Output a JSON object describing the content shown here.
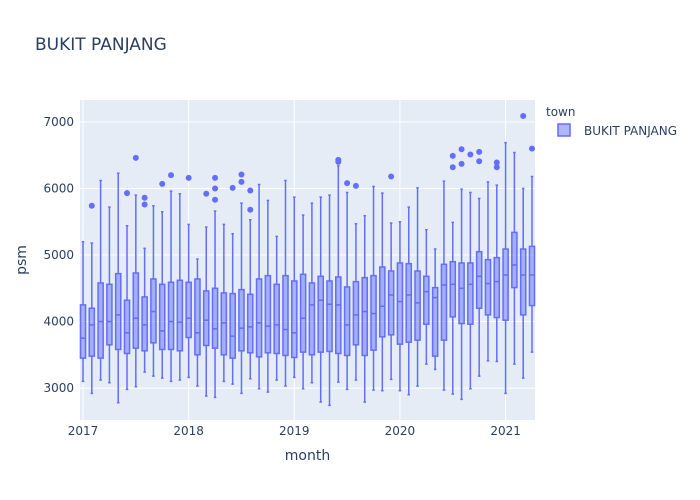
{
  "chart_data": {
    "type": "box",
    "title": "BUKIT PANJANG",
    "xlabel": "month",
    "ylabel": "psm",
    "xlim": [
      "2017-01",
      "2021-04"
    ],
    "ylim": [
      2520,
      7330
    ],
    "x_ticks": [
      {
        "value": "2017-01",
        "label": "2017"
      },
      {
        "value": "2018-01",
        "label": "2018"
      },
      {
        "value": "2019-01",
        "label": "2019"
      },
      {
        "value": "2020-01",
        "label": "2020"
      },
      {
        "value": "2021-01",
        "label": "2021"
      }
    ],
    "y_ticks": [
      3000,
      4000,
      5000,
      6000,
      7000
    ],
    "y_tick_labels": [
      "3000",
      "4000",
      "5000",
      "6000",
      "7000"
    ],
    "grid": true,
    "legend": {
      "title": "town",
      "placement": "top-right",
      "entries": [
        "BUKIT PANJANG"
      ]
    },
    "colors": {
      "line": "#636efa",
      "fill": "rgba(99,110,250,0.5)",
      "plot_bg": "#e5ecf6",
      "grid": "#ffffff",
      "text": "#2a3f5f"
    },
    "series": [
      {
        "name": "BUKIT PANJANG",
        "boxes": [
          {
            "x": "2017-01",
            "min": 3100,
            "q1": 3450,
            "median": 3750,
            "q3": 4250,
            "max": 5200,
            "outliers": []
          },
          {
            "x": "2017-02",
            "min": 2920,
            "q1": 3480,
            "median": 3950,
            "q3": 4200,
            "max": 5180,
            "outliers": [
              5740
            ]
          },
          {
            "x": "2017-03",
            "min": 3120,
            "q1": 3450,
            "median": 4000,
            "q3": 4580,
            "max": 6120,
            "outliers": []
          },
          {
            "x": "2017-04",
            "min": 3080,
            "q1": 3650,
            "median": 4000,
            "q3": 4560,
            "max": 5720,
            "outliers": []
          },
          {
            "x": "2017-05",
            "min": 2780,
            "q1": 3580,
            "median": 4100,
            "q3": 4720,
            "max": 6230,
            "outliers": []
          },
          {
            "x": "2017-06",
            "min": 2980,
            "q1": 3520,
            "median": 3830,
            "q3": 4320,
            "max": 5440,
            "outliers": [
              5930
            ]
          },
          {
            "x": "2017-07",
            "min": 3020,
            "q1": 3600,
            "median": 4050,
            "q3": 4730,
            "max": 5900,
            "outliers": [
              6460
            ]
          },
          {
            "x": "2017-08",
            "min": 3240,
            "q1": 3560,
            "median": 3950,
            "q3": 4370,
            "max": 5100,
            "outliers": [
              5760,
              5860
            ]
          },
          {
            "x": "2017-09",
            "min": 3180,
            "q1": 3680,
            "median": 4150,
            "q3": 4640,
            "max": 5740,
            "outliers": []
          },
          {
            "x": "2017-10",
            "min": 3150,
            "q1": 3580,
            "median": 3860,
            "q3": 4560,
            "max": 5650,
            "outliers": [
              6070
            ]
          },
          {
            "x": "2017-11",
            "min": 3100,
            "q1": 3580,
            "median": 4000,
            "q3": 4590,
            "max": 5960,
            "outliers": [
              6200
            ]
          },
          {
            "x": "2017-12",
            "min": 3120,
            "q1": 3560,
            "median": 3990,
            "q3": 4620,
            "max": 5920,
            "outliers": []
          },
          {
            "x": "2018-01",
            "min": 3160,
            "q1": 3760,
            "median": 4050,
            "q3": 4590,
            "max": 5460,
            "outliers": [
              6160
            ]
          },
          {
            "x": "2018-02",
            "min": 3030,
            "q1": 3500,
            "median": 3830,
            "q3": 4640,
            "max": 4940,
            "outliers": []
          },
          {
            "x": "2018-03",
            "min": 2880,
            "q1": 3640,
            "median": 4020,
            "q3": 4460,
            "max": 5420,
            "outliers": [
              5920
            ]
          },
          {
            "x": "2018-04",
            "min": 2860,
            "q1": 3600,
            "median": 3890,
            "q3": 4500,
            "max": 5660,
            "outliers": [
              5830,
              6000,
              6160
            ]
          },
          {
            "x": "2018-05",
            "min": 3100,
            "q1": 3500,
            "median": 3980,
            "q3": 4430,
            "max": 5460,
            "outliers": []
          },
          {
            "x": "2018-06",
            "min": 3060,
            "q1": 3450,
            "median": 3780,
            "q3": 4420,
            "max": 5320,
            "outliers": [
              6010
            ]
          },
          {
            "x": "2018-07",
            "min": 2920,
            "q1": 3560,
            "median": 3900,
            "q3": 4480,
            "max": 5780,
            "outliers": [
              6100,
              6210
            ]
          },
          {
            "x": "2018-08",
            "min": 3140,
            "q1": 3530,
            "median": 3920,
            "q3": 4410,
            "max": 5530,
            "outliers": [
              5680,
              5970
            ]
          },
          {
            "x": "2018-09",
            "min": 2990,
            "q1": 3470,
            "median": 3980,
            "q3": 4640,
            "max": 6060,
            "outliers": []
          },
          {
            "x": "2018-10",
            "min": 2940,
            "q1": 3530,
            "median": 3930,
            "q3": 4690,
            "max": 5820,
            "outliers": []
          },
          {
            "x": "2018-11",
            "min": 3120,
            "q1": 3520,
            "median": 3950,
            "q3": 4560,
            "max": 5280,
            "outliers": []
          },
          {
            "x": "2018-12",
            "min": 3030,
            "q1": 3490,
            "median": 3880,
            "q3": 4690,
            "max": 6120,
            "outliers": []
          },
          {
            "x": "2019-01",
            "min": 3160,
            "q1": 3460,
            "median": 3830,
            "q3": 4610,
            "max": 5870,
            "outliers": []
          },
          {
            "x": "2019-02",
            "min": 2990,
            "q1": 3540,
            "median": 4050,
            "q3": 4710,
            "max": 5600,
            "outliers": []
          },
          {
            "x": "2019-03",
            "min": 3080,
            "q1": 3500,
            "median": 4250,
            "q3": 4580,
            "max": 5780,
            "outliers": []
          },
          {
            "x": "2019-04",
            "min": 2790,
            "q1": 3540,
            "median": 4320,
            "q3": 4680,
            "max": 5870,
            "outliers": []
          },
          {
            "x": "2019-05",
            "min": 2740,
            "q1": 3550,
            "median": 4260,
            "q3": 4610,
            "max": 5900,
            "outliers": []
          },
          {
            "x": "2019-06",
            "min": 3090,
            "q1": 3520,
            "median": 4250,
            "q3": 4670,
            "max": 6340,
            "outliers": [
              6400,
              6430
            ]
          },
          {
            "x": "2019-07",
            "min": 2980,
            "q1": 3490,
            "median": 3950,
            "q3": 4520,
            "max": 5940,
            "outliers": [
              6080
            ]
          },
          {
            "x": "2019-08",
            "min": 3120,
            "q1": 3650,
            "median": 4100,
            "q3": 4600,
            "max": 5470,
            "outliers": [
              6040
            ]
          },
          {
            "x": "2019-09",
            "min": 2790,
            "q1": 3490,
            "median": 4150,
            "q3": 4660,
            "max": 5590,
            "outliers": []
          },
          {
            "x": "2019-10",
            "min": 2970,
            "q1": 3570,
            "median": 4120,
            "q3": 4690,
            "max": 6030,
            "outliers": []
          },
          {
            "x": "2019-11",
            "min": 2960,
            "q1": 3770,
            "median": 4230,
            "q3": 4820,
            "max": 5930,
            "outliers": []
          },
          {
            "x": "2019-12",
            "min": 3130,
            "q1": 3800,
            "median": 4400,
            "q3": 4760,
            "max": 5480,
            "outliers": [
              6180
            ]
          },
          {
            "x": "2020-01",
            "min": 2960,
            "q1": 3660,
            "median": 4300,
            "q3": 4880,
            "max": 5500,
            "outliers": []
          },
          {
            "x": "2020-02",
            "min": 2900,
            "q1": 3690,
            "median": 4400,
            "q3": 4870,
            "max": 5720,
            "outliers": []
          },
          {
            "x": "2020-03",
            "min": 3030,
            "q1": 3720,
            "median": 4280,
            "q3": 4760,
            "max": 6010,
            "outliers": []
          },
          {
            "x": "2020-04",
            "min": 3360,
            "q1": 3960,
            "median": 4450,
            "q3": 4680,
            "max": 5380,
            "outliers": []
          },
          {
            "x": "2020-05",
            "min": 3280,
            "q1": 3480,
            "median": 4360,
            "q3": 4510,
            "max": 5090,
            "outliers": []
          },
          {
            "x": "2020-06",
            "min": 2970,
            "q1": 3720,
            "median": 4550,
            "q3": 4860,
            "max": 6110,
            "outliers": []
          },
          {
            "x": "2020-07",
            "min": 2910,
            "q1": 4070,
            "median": 4560,
            "q3": 4900,
            "max": 5490,
            "outliers": [
              6320,
              6490
            ]
          },
          {
            "x": "2020-08",
            "min": 2830,
            "q1": 3970,
            "median": 4500,
            "q3": 4880,
            "max": 5990,
            "outliers": [
              6370,
              6590
            ]
          },
          {
            "x": "2020-09",
            "min": 2990,
            "q1": 3960,
            "median": 4560,
            "q3": 4880,
            "max": 5940,
            "outliers": [
              6510
            ]
          },
          {
            "x": "2020-10",
            "min": 3180,
            "q1": 4200,
            "median": 4680,
            "q3": 5050,
            "max": 5850,
            "outliers": [
              6410,
              6550
            ]
          },
          {
            "x": "2020-11",
            "min": 3410,
            "q1": 4100,
            "median": 4570,
            "q3": 4930,
            "max": 6100,
            "outliers": []
          },
          {
            "x": "2020-12",
            "min": 3400,
            "q1": 4060,
            "median": 4600,
            "q3": 4960,
            "max": 6050,
            "outliers": [
              6320,
              6390
            ]
          },
          {
            "x": "2021-01",
            "min": 2920,
            "q1": 4020,
            "median": 4700,
            "q3": 5090,
            "max": 6690,
            "outliers": []
          },
          {
            "x": "2021-02",
            "min": 3360,
            "q1": 4510,
            "median": 4850,
            "q3": 5340,
            "max": 6540,
            "outliers": []
          },
          {
            "x": "2021-03",
            "min": 3150,
            "q1": 4100,
            "median": 4700,
            "q3": 5090,
            "max": 6000,
            "outliers": [
              7090
            ]
          },
          {
            "x": "2021-04",
            "min": 3540,
            "q1": 4240,
            "median": 4700,
            "q3": 5130,
            "max": 6180,
            "outliers": [
              6600
            ]
          }
        ]
      }
    ]
  }
}
